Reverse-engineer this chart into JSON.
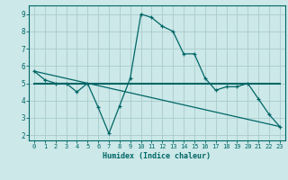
{
  "xlabel": "Humidex (Indice chaleur)",
  "bg_color": "#cce8e8",
  "grid_color": "#aacccc",
  "line_color": "#006666",
  "xlim": [
    -0.5,
    23.5
  ],
  "ylim": [
    1.7,
    9.5
  ],
  "yticks": [
    2,
    3,
    4,
    5,
    6,
    7,
    8,
    9
  ],
  "xticks": [
    0,
    1,
    2,
    3,
    4,
    5,
    6,
    7,
    8,
    9,
    10,
    11,
    12,
    13,
    14,
    15,
    16,
    17,
    18,
    19,
    20,
    21,
    22,
    23
  ],
  "series1_x": [
    0,
    1,
    2,
    3,
    4,
    5,
    6,
    7,
    8,
    9,
    10,
    11,
    12,
    13,
    14,
    15,
    16,
    17,
    18,
    19,
    20,
    21,
    22,
    23
  ],
  "series1_y": [
    5.7,
    5.2,
    5.0,
    5.0,
    4.5,
    5.0,
    3.6,
    2.1,
    3.7,
    5.3,
    9.0,
    8.8,
    8.3,
    8.0,
    6.7,
    6.7,
    5.3,
    4.6,
    4.8,
    4.8,
    5.0,
    4.1,
    3.2,
    2.5
  ],
  "series2_x": [
    0,
    23
  ],
  "series2_y": [
    5.0,
    5.0
  ],
  "series3_x": [
    0,
    23
  ],
  "series3_y": [
    5.7,
    2.5
  ]
}
